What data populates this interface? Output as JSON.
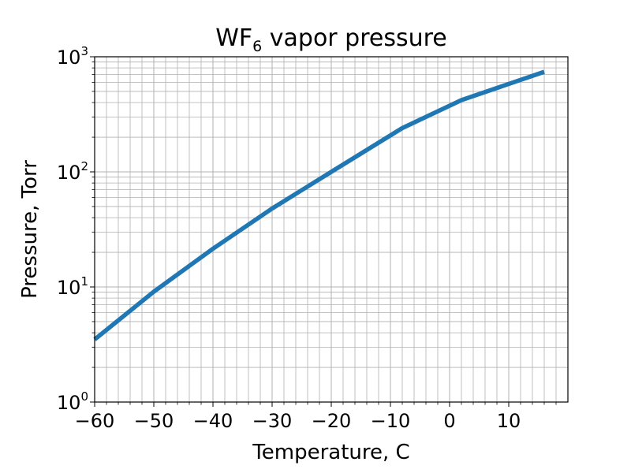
{
  "chart_data": {
    "type": "line",
    "title": {
      "base": "WF",
      "sub": "6",
      "rest": " vapor pressure"
    },
    "xlabel": "Temperature, C",
    "ylabel": "Pressure, Torr",
    "xlim": [
      -60,
      20
    ],
    "ylim": [
      1,
      1000
    ],
    "yscale": "log",
    "grid": true,
    "x_ticks": [
      -60,
      -50,
      -40,
      -30,
      -20,
      -10,
      0,
      10
    ],
    "x_tick_labels": [
      "−60",
      "−50",
      "−40",
      "−30",
      "−20",
      "−10",
      "0",
      "10"
    ],
    "y_ticks": [
      {
        "value": 1,
        "base": "10",
        "exp": "0"
      },
      {
        "value": 10,
        "base": "10",
        "exp": "1"
      },
      {
        "value": 100,
        "base": "10",
        "exp": "2"
      },
      {
        "value": 1000,
        "base": "10",
        "exp": "3"
      }
    ],
    "series": [
      {
        "color": "#1f77b4",
        "x": [
          -60,
          -50,
          -40,
          -30,
          -20,
          -8,
          2,
          16
        ],
        "y": [
          3.5,
          9.1,
          21.5,
          48,
          100,
          240,
          420,
          740
        ]
      }
    ]
  }
}
